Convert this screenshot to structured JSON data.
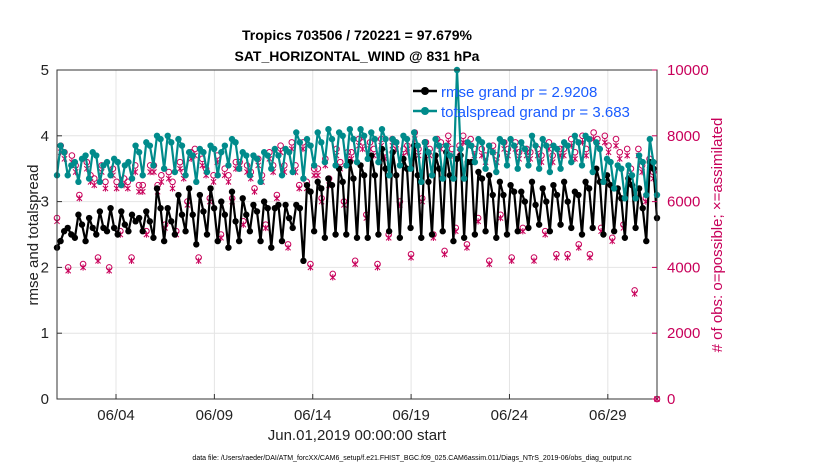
{
  "chart_data": {
    "type": "line",
    "title": "Tropics 703506 / 720221 = 97.679%",
    "subtitle": "SAT_HORIZONTAL_WIND @ 831 hPa",
    "xlabel": "Jun.01,2019 00:00:00 start",
    "ylabel": "rmse and totalspread",
    "ylabel_right": "# of obs: o=possible; ×=assimilated",
    "xlim": [
      0,
      30.5
    ],
    "ylim": [
      0,
      5
    ],
    "ylim_right": [
      0,
      10000
    ],
    "x_ticks": [
      3,
      8,
      13,
      18,
      23,
      28
    ],
    "x_tick_labels": [
      "06/04",
      "06/09",
      "06/14",
      "06/19",
      "06/24",
      "06/29"
    ],
    "y_ticks": [
      0,
      1,
      2,
      3,
      4,
      5
    ],
    "y_ticks_right": [
      0,
      2000,
      4000,
      6000,
      8000,
      10000
    ],
    "grid": true,
    "legend_position": "top-right",
    "series": [
      {
        "name": "rmse grand pr = 2.9208",
        "axis": "left",
        "color": "#000000",
        "values": [
          2.3,
          2.4,
          2.55,
          2.6,
          2.5,
          2.45,
          2.8,
          2.65,
          2.4,
          2.75,
          2.6,
          2.5,
          2.85,
          2.6,
          2.55,
          2.9,
          2.6,
          2.5,
          2.85,
          2.65,
          2.55,
          2.8,
          2.7,
          2.75,
          2.55,
          2.85,
          2.7,
          2.45,
          3.2,
          2.9,
          2.4,
          2.9,
          2.7,
          2.5,
          3.1,
          2.8,
          2.55,
          3.2,
          2.8,
          2.35,
          3.1,
          2.85,
          2.5,
          3.2,
          2.9,
          2.4,
          3.0,
          2.8,
          2.3,
          3.15,
          2.7,
          2.4,
          3.05,
          2.8,
          2.55,
          2.95,
          2.85,
          2.4,
          3.0,
          2.9,
          2.3,
          2.9,
          2.95,
          2.4,
          2.95,
          2.75,
          2.6,
          2.95,
          2.9,
          2.1,
          3.25,
          3.15,
          2.55,
          3.3,
          3.2,
          2.45,
          3.35,
          3.25,
          2.5,
          3.5,
          3.3,
          2.5,
          3.6,
          3.35,
          2.45,
          3.55,
          3.4,
          2.45,
          3.7,
          3.4,
          2.5,
          3.8,
          3.5,
          2.55,
          3.75,
          3.4,
          2.45,
          3.65,
          3.5,
          2.6,
          3.85,
          3.4,
          2.45,
          3.9,
          3.3,
          2.5,
          3.7,
          3.5,
          2.55,
          3.75,
          3.4,
          2.4,
          3.65,
          3.7,
          2.45,
          3.6,
          3.6,
          2.5,
          3.45,
          3.35,
          2.55,
          3.4,
          3.1,
          2.45,
          3.3,
          3.1,
          2.5,
          3.25,
          3.15,
          2.55,
          3.15,
          3.0,
          2.6,
          3.3,
          2.95,
          2.65,
          3.2,
          3.0,
          2.55,
          3.25,
          3.1,
          2.65,
          3.3,
          3.0,
          2.6,
          3.15,
          3.1,
          2.5,
          3.3,
          3.2,
          2.6,
          3.5,
          3.3,
          2.5,
          3.4,
          3.25,
          2.55,
          3.2,
          3.05,
          2.45,
          3.35,
          3.25,
          2.6,
          3.2,
          2.9,
          2.4,
          3.6,
          3.5,
          2.75
        ]
      },
      {
        "name": "totalspread grand pr = 3.683",
        "axis": "left",
        "color": "#008b8b",
        "values": [
          3.4,
          3.85,
          3.75,
          3.4,
          3.55,
          3.6,
          3.3,
          3.65,
          3.7,
          3.35,
          3.75,
          3.7,
          3.3,
          3.55,
          3.6,
          3.4,
          3.65,
          3.6,
          3.25,
          3.55,
          3.6,
          3.35,
          3.85,
          3.75,
          3.4,
          3.9,
          3.85,
          3.55,
          4.0,
          3.95,
          3.5,
          4.0,
          3.9,
          3.45,
          3.95,
          3.85,
          3.4,
          3.75,
          3.7,
          3.3,
          3.8,
          3.75,
          3.45,
          3.85,
          3.8,
          3.4,
          3.75,
          3.85,
          3.55,
          3.95,
          3.9,
          3.5,
          3.75,
          3.7,
          3.4,
          3.7,
          3.65,
          3.3,
          3.75,
          3.7,
          3.5,
          3.8,
          3.7,
          3.4,
          3.8,
          3.75,
          3.45,
          4.05,
          3.9,
          3.35,
          3.95,
          3.85,
          3.55,
          4.05,
          3.9,
          3.6,
          4.1,
          3.95,
          3.55,
          4.05,
          4.0,
          3.55,
          4.1,
          3.95,
          3.6,
          4.1,
          4.0,
          3.65,
          4.05,
          3.95,
          3.6,
          4.1,
          3.95,
          3.4,
          3.95,
          3.9,
          3.55,
          4.0,
          3.95,
          3.5,
          4.05,
          3.85,
          3.3,
          3.9,
          3.75,
          3.4,
          3.95,
          3.85,
          3.35,
          3.85,
          3.7,
          3.35,
          5.0,
          3.8,
          3.35,
          3.9,
          3.85,
          3.6,
          3.95,
          3.9,
          3.5,
          3.85,
          3.75,
          3.45,
          3.95,
          3.9,
          3.55,
          3.95,
          3.85,
          3.5,
          3.9,
          3.8,
          3.55,
          4.0,
          3.85,
          3.5,
          3.95,
          3.85,
          3.45,
          3.85,
          3.8,
          3.5,
          3.9,
          3.85,
          3.6,
          4.0,
          3.9,
          3.55,
          4.0,
          3.95,
          3.45,
          3.9,
          3.8,
          3.3,
          3.65,
          3.6,
          3.2,
          3.55,
          3.5,
          3.05,
          3.55,
          3.4,
          3.05,
          3.7,
          3.6,
          3.1,
          3.95,
          3.6,
          3.1
        ]
      },
      {
        "name": "possible obs",
        "axis": "right",
        "color": "#c8005a",
        "marker": "circle",
        "values": [
          5500,
          7700,
          7500,
          4000,
          7400,
          7100,
          6200,
          4100,
          7200,
          6800,
          6700,
          4300,
          7100,
          6600,
          4000,
          7000,
          6600,
          5100,
          6700,
          6600,
          4300,
          7100,
          6500,
          6500,
          5100,
          7100,
          7100,
          6500,
          6800,
          5300,
          6900,
          6600,
          5100,
          7200,
          6900,
          6000,
          7500,
          7600,
          4300,
          7300,
          7000,
          6100,
          6800,
          7400,
          5000,
          7000,
          6800,
          6100,
          7200,
          7200,
          5400,
          7100,
          6900,
          6400,
          7300,
          6800,
          5300,
          7500,
          7100,
          6200,
          7700,
          7100,
          4700,
          7800,
          7100,
          6500,
          7800,
          6600,
          4100,
          7000,
          7000,
          6100,
          7300,
          6700,
          3800,
          7600,
          7200,
          6000,
          7500,
          7500,
          4200,
          7900,
          7800,
          5600,
          7800,
          7600,
          4100,
          7900,
          7500,
          5000,
          7900,
          7800,
          6000,
          7600,
          7700,
          4400,
          8100,
          7600,
          6100,
          7800,
          7600,
          5000,
          7900,
          7800,
          4500,
          8000,
          7600,
          5200,
          7700,
          8000,
          4700,
          7900,
          7600,
          5500,
          7600,
          7400,
          4200,
          7700,
          7400,
          5600,
          7800,
          7600,
          4300,
          7800,
          7500,
          5200,
          7600,
          7500,
          4300,
          7600,
          7400,
          5100,
          7800,
          7400,
          4400,
          7600,
          7600,
          4400,
          7900,
          7500,
          4700,
          8000,
          7600,
          4400,
          8100,
          7900,
          5200,
          8000,
          7700,
          4900,
          7900,
          7500,
          5300,
          7600,
          7000,
          3300,
          7600,
          7100,
          6100,
          7300,
          6900,
          0
        ]
      },
      {
        "name": "assimilated obs",
        "axis": "right",
        "color": "#c8005a",
        "marker": "x",
        "values": [
          5400,
          7500,
          7300,
          3900,
          7200,
          6900,
          6100,
          4000,
          7000,
          6600,
          6500,
          4200,
          6900,
          6400,
          3900,
          6800,
          6400,
          5000,
          6500,
          6400,
          4200,
          6900,
          6300,
          6300,
          5000,
          6900,
          6900,
          6300,
          6600,
          5200,
          6700,
          6400,
          5000,
          7000,
          6700,
          5900,
          7300,
          7400,
          4200,
          7100,
          6800,
          6000,
          6600,
          7200,
          4900,
          6800,
          6600,
          6000,
          7000,
          7000,
          5300,
          6900,
          6700,
          6300,
          7100,
          6600,
          5200,
          7300,
          6900,
          6100,
          7500,
          6900,
          4600,
          7600,
          6900,
          6400,
          7600,
          6400,
          4000,
          6800,
          6800,
          6000,
          7100,
          6500,
          3700,
          7400,
          7000,
          5900,
          7300,
          7300,
          4100,
          7700,
          7600,
          5500,
          7600,
          7400,
          4000,
          7700,
          7300,
          4900,
          7700,
          7600,
          5900,
          7400,
          7500,
          4300,
          7900,
          7400,
          6000,
          7600,
          7400,
          4900,
          7700,
          7600,
          4400,
          7800,
          7400,
          5100,
          7500,
          7800,
          4600,
          7700,
          7400,
          5400,
          7400,
          7200,
          4100,
          7500,
          7200,
          5500,
          7600,
          7400,
          4200,
          7600,
          7300,
          5100,
          7400,
          7300,
          4200,
          7400,
          7200,
          5000,
          7600,
          7200,
          4300,
          7400,
          7400,
          4300,
          7700,
          7300,
          4600,
          7800,
          7400,
          4300,
          7900,
          7700,
          5100,
          7800,
          7500,
          4800,
          7700,
          7300,
          5200,
          7400,
          6800,
          3200,
          7400,
          6900,
          6000,
          7100,
          6700,
          0
        ]
      }
    ]
  },
  "footer": "data file: /Users/raeder/DAI/ATM_forcXX/CAM6_setup/f.e21.FHIST_BGC.f09_025.CAM6assim.011/Diags_NTrS_2019-06/obs_diag_output.nc"
}
